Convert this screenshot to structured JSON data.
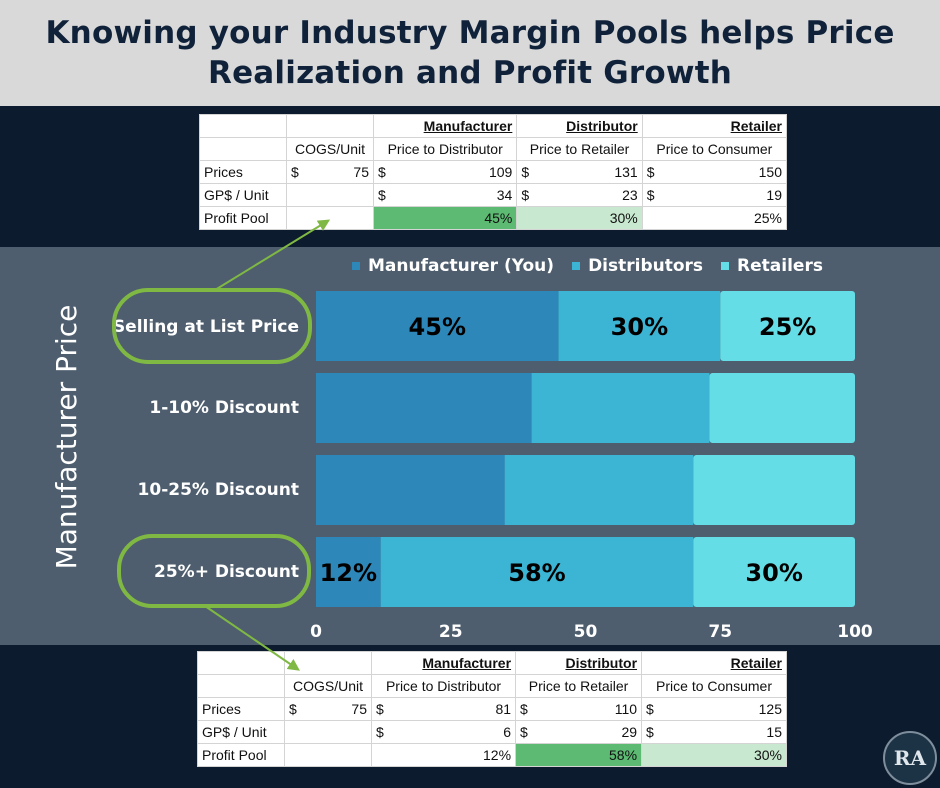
{
  "title": "Knowing your Industry Margin Pools helps Price Realization and Profit Growth",
  "colors": {
    "manufacturer": "#2d87b8",
    "distributor": "#3cb4d3",
    "retailer": "#64dde6",
    "highlight": "#7fb843",
    "header_bg": "#d9d9d9",
    "band": "#4e5e6e",
    "dark": "#0d1b2e"
  },
  "y_axis_label": "Manufacturer Price",
  "top_table": {
    "headers": [
      "",
      "",
      "Manufacturer",
      "Distributor",
      "Retailer"
    ],
    "subheaders": [
      "",
      "COGS/Unit",
      "Price to Distributor",
      "Price to Retailer",
      "Price to Consumer"
    ],
    "rows": [
      {
        "label": "Prices",
        "cogs": "75",
        "mfr": "109",
        "dist": "131",
        "ret": "150"
      },
      {
        "label": "GP$ / Unit",
        "cogs": "",
        "mfr": "34",
        "dist": "23",
        "ret": "19"
      },
      {
        "label": "Profit Pool",
        "cogs": "",
        "mfr": "45%",
        "dist": "30%",
        "ret": "25%"
      }
    ]
  },
  "bottom_table": {
    "headers": [
      "",
      "",
      "Manufacturer",
      "Distributor",
      "Retailer"
    ],
    "subheaders": [
      "",
      "COGS/Unit",
      "Price to Distributor",
      "Price to Retailer",
      "Price to Consumer"
    ],
    "rows": [
      {
        "label": "Prices",
        "cogs": "75",
        "mfr": "81",
        "dist": "110",
        "ret": "125"
      },
      {
        "label": "GP$ / Unit",
        "cogs": "",
        "mfr": "6",
        "dist": "29",
        "ret": "15"
      },
      {
        "label": "Profit Pool",
        "cogs": "",
        "mfr": "12%",
        "dist": "58%",
        "ret": "30%"
      }
    ]
  },
  "chart_data": {
    "type": "bar",
    "orientation": "horizontal",
    "stacked": true,
    "categories": [
      "Selling at List Price",
      "1-10% Discount",
      "10-25% Discount",
      "25%+ Discount"
    ],
    "series": [
      {
        "name": "Manufacturer (You)",
        "values": [
          45,
          40,
          35,
          12
        ],
        "labels": [
          "45%",
          "",
          "",
          "12%"
        ]
      },
      {
        "name": "Distributors",
        "values": [
          30,
          33,
          35,
          58
        ],
        "labels": [
          "30%",
          "",
          "",
          "58%"
        ]
      },
      {
        "name": "Retailers",
        "values": [
          25,
          27,
          30,
          30
        ],
        "labels": [
          "25%",
          "",
          "",
          "30%"
        ]
      }
    ],
    "xlim": [
      0,
      100
    ],
    "xticks": [
      "0",
      "25",
      "50",
      "75",
      "100"
    ],
    "legend_position": "top",
    "grid": false,
    "highlighted_categories": [
      "Selling at List Price",
      "25%+ Discount"
    ]
  }
}
